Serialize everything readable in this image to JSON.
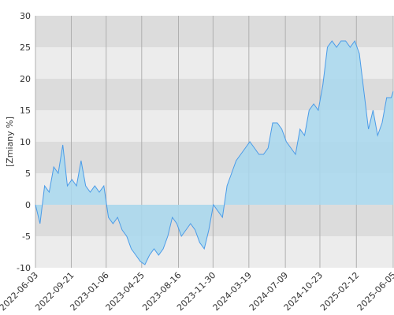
{
  "chart_data": {
    "type": "area",
    "y_label": "[Zmiany %]",
    "color": "#4a9be8",
    "fill_color": "#a8d8ee",
    "x": [
      "2022-06-03",
      "2022-06-17",
      "2022-07-01",
      "2022-07-15",
      "2022-07-29",
      "2022-08-12",
      "2022-08-26",
      "2022-09-09",
      "2022-09-23",
      "2022-10-07",
      "2022-10-21",
      "2022-11-04",
      "2022-11-18",
      "2022-12-02",
      "2022-12-16",
      "2022-12-30",
      "2023-01-13",
      "2023-01-27",
      "2023-02-10",
      "2023-02-24",
      "2023-03-10",
      "2023-03-24",
      "2023-04-07",
      "2023-04-21",
      "2023-05-05",
      "2023-05-19",
      "2023-06-02",
      "2023-06-16",
      "2023-06-30",
      "2023-07-14",
      "2023-07-28",
      "2023-08-11",
      "2023-08-25",
      "2023-09-08",
      "2023-09-22",
      "2023-10-06",
      "2023-10-20",
      "2023-11-03",
      "2023-11-17",
      "2023-12-01",
      "2023-12-15",
      "2023-12-29",
      "2024-01-12",
      "2024-01-26",
      "2024-02-09",
      "2024-02-23",
      "2024-03-08",
      "2024-03-22",
      "2024-04-05",
      "2024-04-19",
      "2024-05-03",
      "2024-05-17",
      "2024-05-31",
      "2024-06-14",
      "2024-06-28",
      "2024-07-12",
      "2024-07-26",
      "2024-08-09",
      "2024-08-23",
      "2024-09-06",
      "2024-09-20",
      "2024-10-04",
      "2024-10-18",
      "2024-11-01",
      "2024-11-15",
      "2024-11-29",
      "2024-12-13",
      "2024-12-27",
      "2025-01-10",
      "2025-01-24",
      "2025-02-07",
      "2025-02-21",
      "2025-03-07",
      "2025-03-21",
      "2025-04-04",
      "2025-04-18",
      "2025-05-02",
      "2025-05-16",
      "2025-05-30",
      "2025-06-05"
    ],
    "values": [
      0,
      -3,
      3,
      2,
      6,
      5,
      9.5,
      3,
      4,
      3,
      7,
      3,
      2,
      3,
      2,
      3,
      -2,
      -3,
      -2,
      -4,
      -5,
      -7,
      -8,
      -9,
      -9.5,
      -8,
      -7,
      -8,
      -7,
      -5,
      -2,
      -3,
      -5,
      -4,
      -3,
      -4,
      -6,
      -7,
      -4,
      0,
      -1,
      -2,
      3,
      5,
      7,
      8,
      9,
      10,
      9,
      8,
      8,
      9,
      13,
      13,
      12,
      10,
      9,
      8,
      12,
      11,
      15,
      16,
      15,
      19,
      25,
      26,
      25,
      26,
      26,
      25,
      26,
      24,
      18,
      12,
      15,
      11,
      13,
      17,
      17,
      18
    ],
    "xlim": [
      "2022-06-03",
      "2025-06-05"
    ],
    "xticks": [
      "2022-06-03",
      "2022-09-21",
      "2023-01-06",
      "2023-04-25",
      "2023-08-16",
      "2023-11-30",
      "2024-03-19",
      "2024-07-09",
      "2024-10-23",
      "2025-02-12",
      "2025-06-05"
    ],
    "ylim": [
      -10,
      30
    ],
    "yticks": [
      -10,
      -5,
      0,
      5,
      10,
      15,
      20,
      25,
      30
    ],
    "grid": true
  }
}
